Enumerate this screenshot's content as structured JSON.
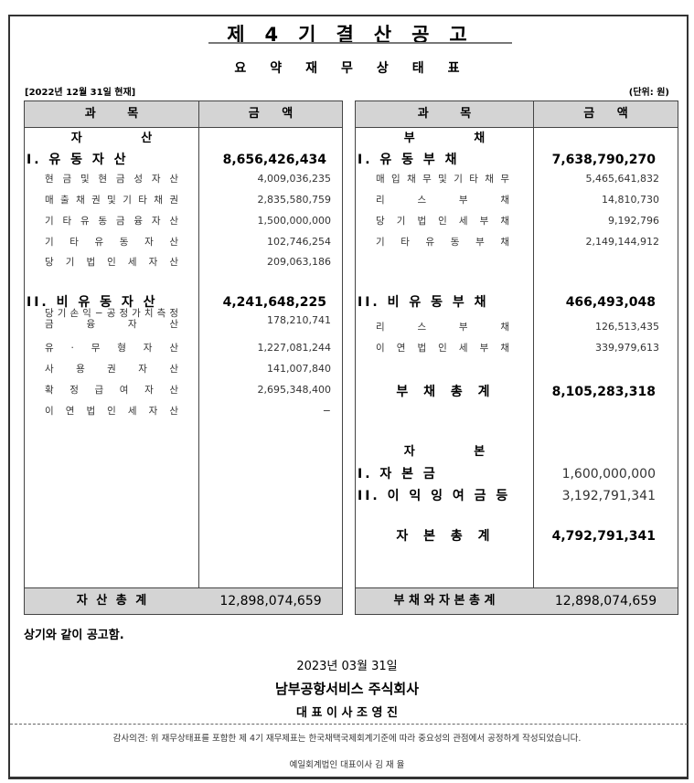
{
  "header": {
    "title": "제4기결산공고",
    "subtitle": "요약재무상태표",
    "as_of": "[2022년 12월 31일 현재]",
    "unit": "(단위: 원)"
  },
  "table_headers": {
    "item": "과 목",
    "amount": "금 액"
  },
  "assets": {
    "section": "자 산",
    "current": {
      "label": "I. 유 동 자 산",
      "amount": "8,656,426,434",
      "items": [
        {
          "label": "현 금 및 현 금 성 자 산",
          "amount": "4,009,036,235"
        },
        {
          "label": "매 출 채 권 및 기 타 채 권",
          "amount": "2,835,580,759"
        },
        {
          "label": "기 타 유 동 금 융 자 산",
          "amount": "1,500,000,000"
        },
        {
          "label": "기 타 유 동 자 산",
          "amount": "102,746,254"
        },
        {
          "label": "당 기 법 인 세 자 산",
          "amount": "209,063,186"
        }
      ]
    },
    "noncurrent": {
      "label": "II. 비 유 동 자 산",
      "amount": "4,241,648,225",
      "items": [
        {
          "label": "당 기 손 익 − 공 정 가 치 측 정",
          "label2": "금 융 자 산",
          "amount": "178,210,741"
        },
        {
          "label": "유 · 무 형 자 산",
          "amount": "1,227,081,244"
        },
        {
          "label": "사 용 권 자 산",
          "amount": "141,007,840"
        },
        {
          "label": "확 정 급 여 자 산",
          "amount": "2,695,348,400"
        },
        {
          "label": "이 연 법 인 세 자 산",
          "amount": "−"
        }
      ]
    },
    "total_label": "자 산 총 계",
    "total": "12,898,074,659"
  },
  "liabilities": {
    "section": "부 채",
    "current": {
      "label": "I. 유 동 부 채",
      "amount": "7,638,790,270",
      "items": [
        {
          "label": "매 입 채 무 및 기 타 채 무",
          "amount": "5,465,641,832"
        },
        {
          "label": "리 스 부 채",
          "amount": "14,810,730"
        },
        {
          "label": "당 기 법 인 세 부 채",
          "amount": "9,192,796"
        },
        {
          "label": "기 타 유 동 부 채",
          "amount": "2,149,144,912"
        }
      ]
    },
    "noncurrent": {
      "label": "II. 비 유 동 부 채",
      "amount": "466,493,048",
      "items": [
        {
          "label": "리 스 부 채",
          "amount": "126,513,435"
        },
        {
          "label": "이 연 법 인 세 부 채",
          "amount": "339,979,613"
        }
      ]
    },
    "total_label": "부 채 총 계",
    "total": "8,105,283,318"
  },
  "equity": {
    "section": "자 본",
    "capital": {
      "label": "I. 자 본 금",
      "amount": "1,600,000,000"
    },
    "retained": {
      "label": "II. 이 익 잉 여 금 등",
      "amount": "3,192,791,341"
    },
    "total_label": "자 본 총 계",
    "total": "4,792,791,341"
  },
  "liab_equity_total_label": "부 채 와 자 본 총 계",
  "liab_equity_total": "12,898,074,659",
  "footer": {
    "notice": "상기와 같이 공고함.",
    "date": "2023년 03월 31일",
    "company": "남부공항서비스 주식회사",
    "ceo": "대 표 이 사 조 영 진",
    "audit_opinion": "감사의견: 위 재무상태표를 포함한 제 4기 재무제표는 한국채택국제회계기준에 따라 중요성의 관점에서 공정하게 작성되었습니다.",
    "auditor": "예일회계법인 대표이사 김 재 율"
  }
}
